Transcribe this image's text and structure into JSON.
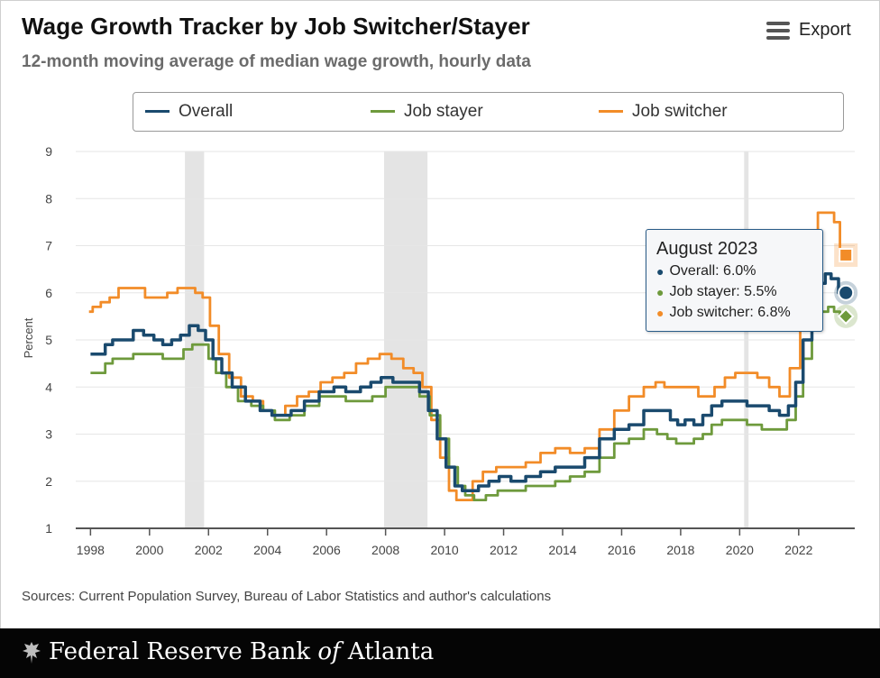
{
  "header": {
    "title": "Wage Growth Tracker by Job Switcher/Stayer",
    "subtitle": "12-month moving average of median wage growth, hourly data",
    "export_label": "Export"
  },
  "source": "Sources: Current Population Survey, Bureau of Labor Statistics and author's calculations",
  "footer": {
    "brand_pre": "Federal Reserve Bank ",
    "brand_of": "of",
    "brand_post": " Atlanta"
  },
  "tooltip": {
    "title": "August 2023",
    "rows": [
      {
        "label": "Overall: 6.0%"
      },
      {
        "label": "Job stayer: 5.5%"
      },
      {
        "label": "Job switcher: 6.8%"
      }
    ]
  },
  "colors": {
    "overall": "#1a4a6e",
    "stayer": "#6e9a3c",
    "switcher": "#f28c28",
    "recession": "#e4e4e4",
    "axis": "#555555",
    "grid": "#e6e6e6"
  },
  "chart_data": {
    "type": "line",
    "ylabel": "Percent",
    "xlim": [
      1997.5,
      2023.9
    ],
    "ylim": [
      1,
      9
    ],
    "yticks": [
      1,
      2,
      3,
      4,
      5,
      6,
      7,
      8,
      9
    ],
    "xticks": [
      1998,
      2000,
      2002,
      2004,
      2006,
      2008,
      2010,
      2012,
      2014,
      2016,
      2018,
      2020,
      2022
    ],
    "grid": "horizontal",
    "legend_position": "top",
    "recessions": [
      [
        2001.2,
        2001.85
      ],
      [
        2007.95,
        2009.42
      ],
      [
        2020.15,
        2020.3
      ]
    ],
    "series": [
      {
        "name": "Overall",
        "key": "overall",
        "points": [
          [
            1998.0,
            4.7
          ],
          [
            1998.4,
            4.7
          ],
          [
            1998.6,
            4.9
          ],
          [
            1998.9,
            5.0
          ],
          [
            1999.3,
            5.0
          ],
          [
            1999.6,
            5.2
          ],
          [
            2000.0,
            5.1
          ],
          [
            2000.3,
            5.0
          ],
          [
            2000.6,
            4.9
          ],
          [
            2000.9,
            5.0
          ],
          [
            2001.2,
            5.1
          ],
          [
            2001.5,
            5.3
          ],
          [
            2001.8,
            5.2
          ],
          [
            2002.0,
            5.0
          ],
          [
            2002.3,
            4.6
          ],
          [
            2002.6,
            4.3
          ],
          [
            2003.0,
            4.0
          ],
          [
            2003.5,
            3.7
          ],
          [
            2004.0,
            3.5
          ],
          [
            2004.3,
            3.4
          ],
          [
            2004.6,
            3.4
          ],
          [
            2005.0,
            3.5
          ],
          [
            2005.5,
            3.7
          ],
          [
            2006.0,
            3.9
          ],
          [
            2006.5,
            4.0
          ],
          [
            2006.8,
            3.9
          ],
          [
            2007.0,
            3.9
          ],
          [
            2007.3,
            4.0
          ],
          [
            2007.7,
            4.1
          ],
          [
            2008.0,
            4.2
          ],
          [
            2008.5,
            4.1
          ],
          [
            2009.0,
            4.1
          ],
          [
            2009.3,
            3.9
          ],
          [
            2009.6,
            3.5
          ],
          [
            2009.9,
            2.9
          ],
          [
            2010.2,
            2.3
          ],
          [
            2010.5,
            1.9
          ],
          [
            2010.7,
            1.8
          ],
          [
            2011.0,
            1.8
          ],
          [
            2011.3,
            1.9
          ],
          [
            2011.7,
            2.0
          ],
          [
            2012.0,
            2.1
          ],
          [
            2012.5,
            2.0
          ],
          [
            2013.0,
            2.1
          ],
          [
            2013.5,
            2.2
          ],
          [
            2014.0,
            2.3
          ],
          [
            2014.5,
            2.3
          ],
          [
            2015.0,
            2.5
          ],
          [
            2015.5,
            2.9
          ],
          [
            2016.0,
            3.1
          ],
          [
            2016.5,
            3.2
          ],
          [
            2017.0,
            3.5
          ],
          [
            2017.5,
            3.5
          ],
          [
            2017.8,
            3.3
          ],
          [
            2018.0,
            3.2
          ],
          [
            2018.3,
            3.3
          ],
          [
            2018.6,
            3.2
          ],
          [
            2018.9,
            3.4
          ],
          [
            2019.2,
            3.6
          ],
          [
            2019.6,
            3.7
          ],
          [
            2020.0,
            3.7
          ],
          [
            2020.5,
            3.6
          ],
          [
            2020.8,
            3.6
          ],
          [
            2021.2,
            3.5
          ],
          [
            2021.5,
            3.4
          ],
          [
            2021.8,
            3.6
          ],
          [
            2022.0,
            4.1
          ],
          [
            2022.3,
            5.0
          ],
          [
            2022.6,
            5.8
          ],
          [
            2022.8,
            6.2
          ],
          [
            2023.0,
            6.4
          ],
          [
            2023.2,
            6.3
          ],
          [
            2023.5,
            6.0
          ]
        ]
      },
      {
        "name": "Job stayer",
        "key": "stayer",
        "points": [
          [
            1998.0,
            4.3
          ],
          [
            1998.4,
            4.3
          ],
          [
            1998.6,
            4.5
          ],
          [
            1998.9,
            4.6
          ],
          [
            1999.3,
            4.6
          ],
          [
            1999.6,
            4.7
          ],
          [
            2000.0,
            4.7
          ],
          [
            2000.3,
            4.7
          ],
          [
            2000.6,
            4.6
          ],
          [
            2001.0,
            4.6
          ],
          [
            2001.3,
            4.8
          ],
          [
            2001.6,
            4.9
          ],
          [
            2001.9,
            4.9
          ],
          [
            2002.1,
            4.6
          ],
          [
            2002.4,
            4.3
          ],
          [
            2002.8,
            4.0
          ],
          [
            2003.2,
            3.7
          ],
          [
            2003.7,
            3.6
          ],
          [
            2004.0,
            3.5
          ],
          [
            2004.5,
            3.3
          ],
          [
            2005.0,
            3.4
          ],
          [
            2005.5,
            3.6
          ],
          [
            2006.0,
            3.8
          ],
          [
            2006.5,
            3.8
          ],
          [
            2006.8,
            3.7
          ],
          [
            2007.3,
            3.7
          ],
          [
            2007.8,
            3.8
          ],
          [
            2008.2,
            4.0
          ],
          [
            2008.6,
            4.0
          ],
          [
            2009.0,
            4.0
          ],
          [
            2009.3,
            3.8
          ],
          [
            2009.7,
            3.4
          ],
          [
            2010.0,
            2.9
          ],
          [
            2010.3,
            2.3
          ],
          [
            2010.6,
            1.9
          ],
          [
            2010.8,
            1.7
          ],
          [
            2011.2,
            1.6
          ],
          [
            2011.6,
            1.7
          ],
          [
            2012.0,
            1.8
          ],
          [
            2012.5,
            1.8
          ],
          [
            2013.0,
            1.9
          ],
          [
            2013.5,
            1.9
          ],
          [
            2014.0,
            2.0
          ],
          [
            2014.5,
            2.1
          ],
          [
            2015.0,
            2.2
          ],
          [
            2015.5,
            2.5
          ],
          [
            2016.0,
            2.8
          ],
          [
            2016.5,
            2.9
          ],
          [
            2017.0,
            3.1
          ],
          [
            2017.4,
            3.0
          ],
          [
            2017.7,
            2.9
          ],
          [
            2018.0,
            2.8
          ],
          [
            2018.3,
            2.8
          ],
          [
            2018.6,
            2.9
          ],
          [
            2018.9,
            3.0
          ],
          [
            2019.2,
            3.2
          ],
          [
            2019.6,
            3.3
          ],
          [
            2020.0,
            3.3
          ],
          [
            2020.5,
            3.2
          ],
          [
            2021.0,
            3.1
          ],
          [
            2021.4,
            3.1
          ],
          [
            2021.8,
            3.3
          ],
          [
            2022.0,
            3.8
          ],
          [
            2022.3,
            4.6
          ],
          [
            2022.6,
            5.3
          ],
          [
            2022.9,
            5.6
          ],
          [
            2023.1,
            5.7
          ],
          [
            2023.3,
            5.6
          ],
          [
            2023.5,
            5.5
          ]
        ]
      },
      {
        "name": "Job switcher",
        "key": "switcher",
        "points": [
          [
            1997.95,
            5.6
          ],
          [
            1998.2,
            5.7
          ],
          [
            1998.5,
            5.8
          ],
          [
            1998.8,
            5.9
          ],
          [
            1999.1,
            6.1
          ],
          [
            1999.4,
            6.1
          ],
          [
            1999.7,
            6.1
          ],
          [
            2000.0,
            5.9
          ],
          [
            2000.4,
            5.9
          ],
          [
            2000.8,
            6.0
          ],
          [
            2001.1,
            6.1
          ],
          [
            2001.4,
            6.1
          ],
          [
            2001.7,
            6.0
          ],
          [
            2001.9,
            5.9
          ],
          [
            2002.2,
            5.3
          ],
          [
            2002.5,
            4.7
          ],
          [
            2002.9,
            4.2
          ],
          [
            2003.3,
            3.8
          ],
          [
            2003.7,
            3.7
          ],
          [
            2004.0,
            3.5
          ],
          [
            2004.4,
            3.4
          ],
          [
            2004.8,
            3.6
          ],
          [
            2005.2,
            3.8
          ],
          [
            2005.6,
            3.9
          ],
          [
            2006.0,
            4.1
          ],
          [
            2006.4,
            4.2
          ],
          [
            2006.8,
            4.3
          ],
          [
            2007.2,
            4.5
          ],
          [
            2007.6,
            4.6
          ],
          [
            2008.0,
            4.7
          ],
          [
            2008.4,
            4.6
          ],
          [
            2008.8,
            4.4
          ],
          [
            2009.1,
            4.3
          ],
          [
            2009.4,
            4.0
          ],
          [
            2009.7,
            3.3
          ],
          [
            2010.0,
            2.5
          ],
          [
            2010.3,
            1.8
          ],
          [
            2010.5,
            1.6
          ],
          [
            2010.8,
            1.6
          ],
          [
            2011.1,
            2.0
          ],
          [
            2011.5,
            2.2
          ],
          [
            2012.0,
            2.3
          ],
          [
            2012.5,
            2.3
          ],
          [
            2013.0,
            2.4
          ],
          [
            2013.5,
            2.6
          ],
          [
            2014.0,
            2.7
          ],
          [
            2014.5,
            2.6
          ],
          [
            2015.0,
            2.7
          ],
          [
            2015.5,
            3.1
          ],
          [
            2016.0,
            3.5
          ],
          [
            2016.5,
            3.8
          ],
          [
            2017.0,
            4.0
          ],
          [
            2017.3,
            4.1
          ],
          [
            2017.6,
            4.0
          ],
          [
            2018.0,
            4.0
          ],
          [
            2018.5,
            4.0
          ],
          [
            2018.7,
            3.8
          ],
          [
            2019.0,
            3.8
          ],
          [
            2019.3,
            4.0
          ],
          [
            2019.7,
            4.2
          ],
          [
            2020.0,
            4.3
          ],
          [
            2020.4,
            4.3
          ],
          [
            2020.8,
            4.2
          ],
          [
            2021.2,
            4.0
          ],
          [
            2021.5,
            3.8
          ],
          [
            2021.9,
            4.4
          ],
          [
            2022.2,
            5.8
          ],
          [
            2022.5,
            7.0
          ],
          [
            2022.8,
            7.7
          ],
          [
            2023.1,
            7.7
          ],
          [
            2023.3,
            7.5
          ],
          [
            2023.5,
            6.8
          ]
        ]
      }
    ],
    "markers": [
      {
        "key": "overall",
        "x": 2023.6,
        "y": 6.0,
        "shape": "circle"
      },
      {
        "key": "stayer",
        "x": 2023.6,
        "y": 5.5,
        "shape": "diamond"
      },
      {
        "key": "switcher",
        "x": 2023.6,
        "y": 6.8,
        "shape": "square"
      }
    ]
  }
}
